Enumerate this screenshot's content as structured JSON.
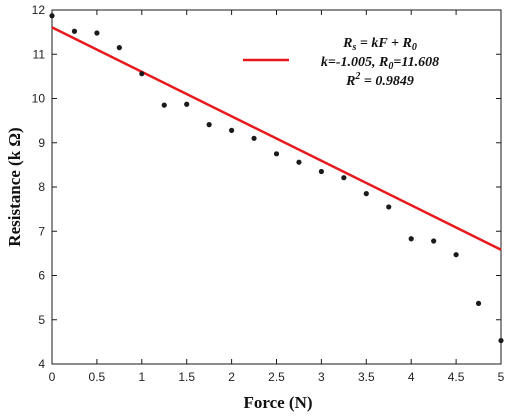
{
  "chart_data": {
    "type": "scatter",
    "xlabel": "Force  (N)",
    "ylabel": "Resistance  (k Ω)",
    "xlim": [
      0,
      5
    ],
    "ylim": [
      4,
      12
    ],
    "x_ticks": [
      "0",
      "0.5",
      "1",
      "1.5",
      "2",
      "2.5",
      "3",
      "3.5",
      "4",
      "4.5",
      "5"
    ],
    "y_ticks": [
      "4",
      "5",
      "6",
      "7",
      "8",
      "9",
      "10",
      "11",
      "12"
    ],
    "grid": false,
    "legend_position": "top-right",
    "series": [
      {
        "kind": "points",
        "marker": "dot",
        "color": "#1a1a1a",
        "x": [
          0,
          0.25,
          0.5,
          0.75,
          1.0,
          1.25,
          1.5,
          1.75,
          2.0,
          2.25,
          2.5,
          2.75,
          3.0,
          3.25,
          3.5,
          3.75,
          4.0,
          4.25,
          4.5,
          4.75,
          5.0
        ],
        "y": [
          11.87,
          11.52,
          11.48,
          11.15,
          10.56,
          9.85,
          9.87,
          9.41,
          9.28,
          9.1,
          8.75,
          8.56,
          8.35,
          8.21,
          7.85,
          7.55,
          6.83,
          6.78,
          6.47,
          5.37,
          4.53
        ]
      },
      {
        "kind": "fit-line",
        "color": "#e8191c",
        "k": -1.005,
        "R0": 11.608,
        "x": [
          0,
          5
        ]
      }
    ],
    "legend": {
      "equation_lhs": "R",
      "equation_lhs_sub": "s",
      "equation_rhs_a": " = kF + R",
      "equation_rhs_sub": "0",
      "params_a": "k=-1.005, R",
      "params_sub": "0",
      "params_b": "=11.608",
      "r2_base": "R",
      "r2_sup": "2",
      "r2_value": " = 0.9849"
    }
  }
}
